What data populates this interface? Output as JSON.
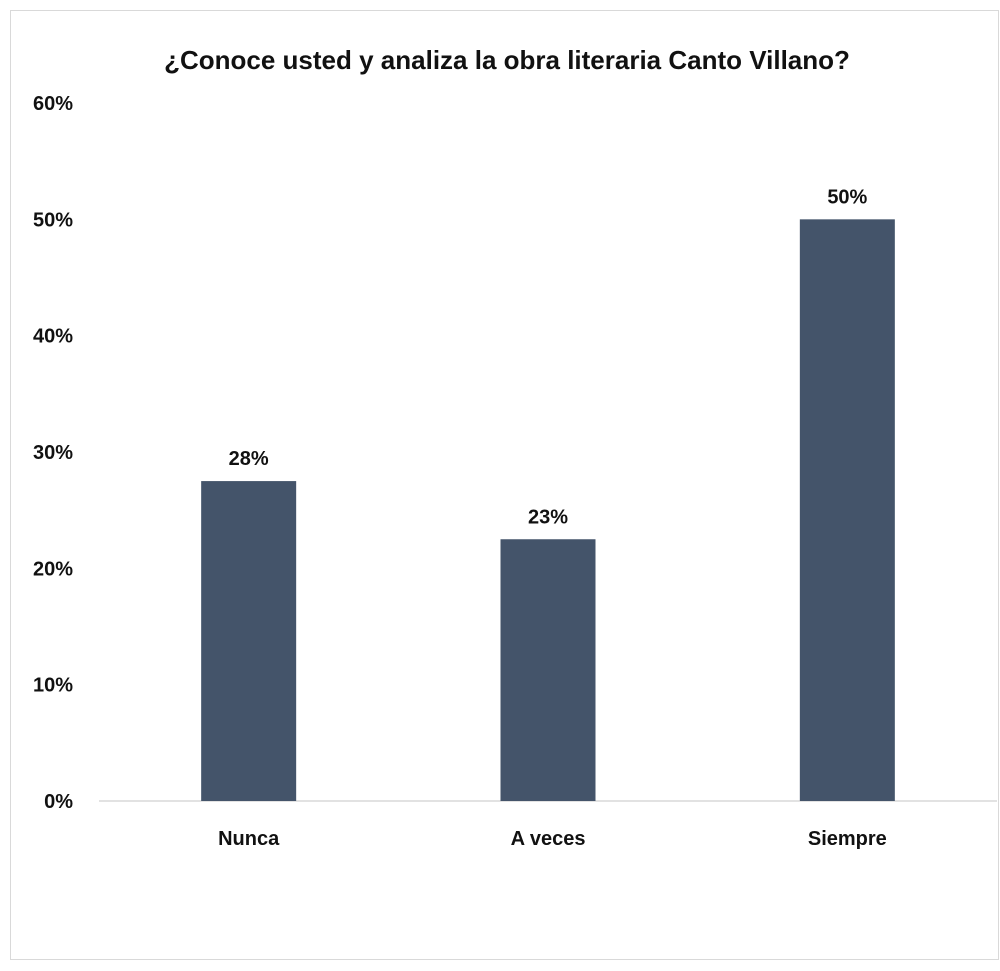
{
  "chart_data": {
    "type": "bar",
    "title": "¿Conoce usted y analiza la obra literaria Canto Villano?",
    "xlabel": "",
    "ylabel": "",
    "categories": [
      "Nunca",
      "A veces",
      "Siempre"
    ],
    "values": [
      27.5,
      22.5,
      50
    ],
    "data_labels": [
      "28%",
      "23%",
      "50%"
    ],
    "y_ticks": [
      0,
      10,
      20,
      30,
      40,
      50,
      60
    ],
    "y_tick_labels": [
      "0%",
      "10%",
      "20%",
      "30%",
      "40%",
      "50%",
      "60%"
    ],
    "ylim": [
      0,
      60
    ],
    "grid": false,
    "legend": "none",
    "bar_color": "#44546a"
  }
}
